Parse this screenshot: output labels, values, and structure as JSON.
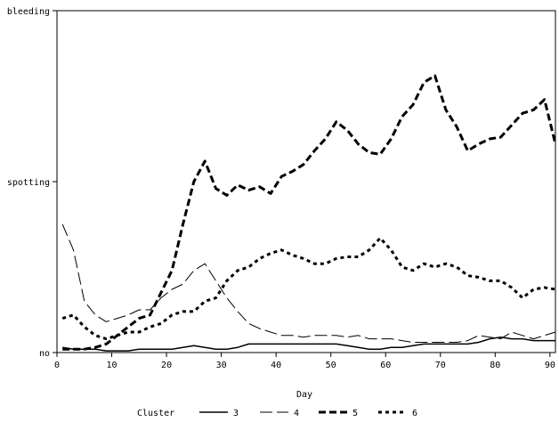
{
  "chart_data": {
    "type": "line",
    "xlabel": "Day",
    "ylabel": "",
    "xlim": [
      0,
      91
    ],
    "ylim": [
      0,
      2
    ],
    "x_ticks": [
      {
        "value": 0,
        "label": "0"
      },
      {
        "value": 10,
        "label": "10"
      },
      {
        "value": 20,
        "label": "20"
      },
      {
        "value": 30,
        "label": "30"
      },
      {
        "value": 40,
        "label": "40"
      },
      {
        "value": 50,
        "label": "50"
      },
      {
        "value": 60,
        "label": "60"
      },
      {
        "value": 70,
        "label": "70"
      },
      {
        "value": 80,
        "label": "80"
      },
      {
        "value": 90,
        "label": "90"
      }
    ],
    "y_ticks": [
      {
        "value": 0,
        "label": "no"
      },
      {
        "value": 1,
        "label": "spotting"
      },
      {
        "value": 2,
        "label": "bleeding"
      }
    ],
    "grid": false,
    "legend": {
      "title": "Cluster",
      "position": "bottom"
    },
    "series": [
      {
        "name": "3",
        "style": "solid",
        "points": [
          [
            1,
            0.03
          ],
          [
            3,
            0.02
          ],
          [
            5,
            0.02
          ],
          [
            7,
            0.02
          ],
          [
            9,
            0.01
          ],
          [
            11,
            0.01
          ],
          [
            13,
            0.01
          ],
          [
            15,
            0.02
          ],
          [
            17,
            0.02
          ],
          [
            19,
            0.02
          ],
          [
            21,
            0.02
          ],
          [
            23,
            0.03
          ],
          [
            25,
            0.04
          ],
          [
            27,
            0.03
          ],
          [
            29,
            0.02
          ],
          [
            31,
            0.02
          ],
          [
            33,
            0.03
          ],
          [
            35,
            0.05
          ],
          [
            37,
            0.05
          ],
          [
            39,
            0.05
          ],
          [
            41,
            0.05
          ],
          [
            43,
            0.05
          ],
          [
            45,
            0.05
          ],
          [
            47,
            0.05
          ],
          [
            49,
            0.05
          ],
          [
            51,
            0.05
          ],
          [
            53,
            0.04
          ],
          [
            55,
            0.03
          ],
          [
            57,
            0.02
          ],
          [
            59,
            0.02
          ],
          [
            61,
            0.03
          ],
          [
            63,
            0.03
          ],
          [
            65,
            0.04
          ],
          [
            67,
            0.05
          ],
          [
            69,
            0.05
          ],
          [
            71,
            0.05
          ],
          [
            73,
            0.05
          ],
          [
            75,
            0.05
          ],
          [
            77,
            0.06
          ],
          [
            79,
            0.08
          ],
          [
            81,
            0.09
          ],
          [
            83,
            0.08
          ],
          [
            85,
            0.08
          ],
          [
            87,
            0.07
          ],
          [
            89,
            0.07
          ],
          [
            91,
            0.07
          ]
        ]
      },
      {
        "name": "4",
        "style": "long-dash",
        "points": [
          [
            1,
            0.75
          ],
          [
            3,
            0.6
          ],
          [
            5,
            0.3
          ],
          [
            7,
            0.22
          ],
          [
            9,
            0.18
          ],
          [
            11,
            0.2
          ],
          [
            13,
            0.22
          ],
          [
            15,
            0.25
          ],
          [
            17,
            0.25
          ],
          [
            19,
            0.32
          ],
          [
            21,
            0.37
          ],
          [
            23,
            0.4
          ],
          [
            25,
            0.48
          ],
          [
            27,
            0.52
          ],
          [
            29,
            0.42
          ],
          [
            31,
            0.32
          ],
          [
            33,
            0.24
          ],
          [
            35,
            0.17
          ],
          [
            37,
            0.14
          ],
          [
            39,
            0.12
          ],
          [
            41,
            0.1
          ],
          [
            43,
            0.1
          ],
          [
            45,
            0.09
          ],
          [
            47,
            0.1
          ],
          [
            49,
            0.1
          ],
          [
            51,
            0.1
          ],
          [
            53,
            0.09
          ],
          [
            55,
            0.1
          ],
          [
            57,
            0.08
          ],
          [
            59,
            0.08
          ],
          [
            61,
            0.08
          ],
          [
            63,
            0.07
          ],
          [
            65,
            0.06
          ],
          [
            67,
            0.06
          ],
          [
            69,
            0.06
          ],
          [
            71,
            0.06
          ],
          [
            73,
            0.06
          ],
          [
            75,
            0.07
          ],
          [
            77,
            0.1
          ],
          [
            79,
            0.09
          ],
          [
            81,
            0.08
          ],
          [
            83,
            0.12
          ],
          [
            85,
            0.1
          ],
          [
            87,
            0.08
          ],
          [
            89,
            0.1
          ],
          [
            91,
            0.12
          ]
        ]
      },
      {
        "name": "5",
        "style": "heavy-dash",
        "points": [
          [
            1,
            0.02
          ],
          [
            3,
            0.02
          ],
          [
            5,
            0.02
          ],
          [
            7,
            0.03
          ],
          [
            9,
            0.05
          ],
          [
            11,
            0.1
          ],
          [
            13,
            0.15
          ],
          [
            15,
            0.2
          ],
          [
            17,
            0.22
          ],
          [
            19,
            0.35
          ],
          [
            21,
            0.48
          ],
          [
            23,
            0.75
          ],
          [
            25,
            1.0
          ],
          [
            27,
            1.12
          ],
          [
            29,
            0.96
          ],
          [
            31,
            0.92
          ],
          [
            33,
            0.98
          ],
          [
            35,
            0.95
          ],
          [
            37,
            0.97
          ],
          [
            39,
            0.93
          ],
          [
            41,
            1.03
          ],
          [
            43,
            1.06
          ],
          [
            45,
            1.1
          ],
          [
            47,
            1.18
          ],
          [
            49,
            1.25
          ],
          [
            51,
            1.35
          ],
          [
            53,
            1.3
          ],
          [
            55,
            1.22
          ],
          [
            57,
            1.17
          ],
          [
            59,
            1.16
          ],
          [
            61,
            1.25
          ],
          [
            63,
            1.38
          ],
          [
            65,
            1.45
          ],
          [
            67,
            1.58
          ],
          [
            69,
            1.62
          ],
          [
            71,
            1.42
          ],
          [
            73,
            1.32
          ],
          [
            75,
            1.18
          ],
          [
            77,
            1.22
          ],
          [
            79,
            1.25
          ],
          [
            81,
            1.26
          ],
          [
            83,
            1.33
          ],
          [
            85,
            1.4
          ],
          [
            87,
            1.42
          ],
          [
            89,
            1.48
          ],
          [
            91,
            1.22
          ]
        ]
      },
      {
        "name": "6",
        "style": "dotted",
        "points": [
          [
            1,
            0.2
          ],
          [
            3,
            0.22
          ],
          [
            5,
            0.15
          ],
          [
            7,
            0.1
          ],
          [
            9,
            0.08
          ],
          [
            11,
            0.1
          ],
          [
            13,
            0.12
          ],
          [
            15,
            0.12
          ],
          [
            17,
            0.15
          ],
          [
            19,
            0.17
          ],
          [
            21,
            0.22
          ],
          [
            23,
            0.24
          ],
          [
            25,
            0.24
          ],
          [
            27,
            0.3
          ],
          [
            29,
            0.32
          ],
          [
            31,
            0.42
          ],
          [
            33,
            0.48
          ],
          [
            35,
            0.5
          ],
          [
            37,
            0.55
          ],
          [
            39,
            0.58
          ],
          [
            41,
            0.6
          ],
          [
            43,
            0.57
          ],
          [
            45,
            0.55
          ],
          [
            47,
            0.52
          ],
          [
            49,
            0.52
          ],
          [
            51,
            0.55
          ],
          [
            53,
            0.56
          ],
          [
            55,
            0.56
          ],
          [
            57,
            0.6
          ],
          [
            59,
            0.67
          ],
          [
            61,
            0.6
          ],
          [
            63,
            0.5
          ],
          [
            65,
            0.48
          ],
          [
            67,
            0.52
          ],
          [
            69,
            0.5
          ],
          [
            71,
            0.52
          ],
          [
            73,
            0.5
          ],
          [
            75,
            0.45
          ],
          [
            77,
            0.44
          ],
          [
            79,
            0.42
          ],
          [
            81,
            0.42
          ],
          [
            83,
            0.38
          ],
          [
            85,
            0.32
          ],
          [
            87,
            0.37
          ],
          [
            89,
            0.38
          ],
          [
            91,
            0.37
          ]
        ]
      }
    ]
  },
  "style": {
    "axis_color": "#000000",
    "line_color": "#000000",
    "background": "#ffffff"
  }
}
